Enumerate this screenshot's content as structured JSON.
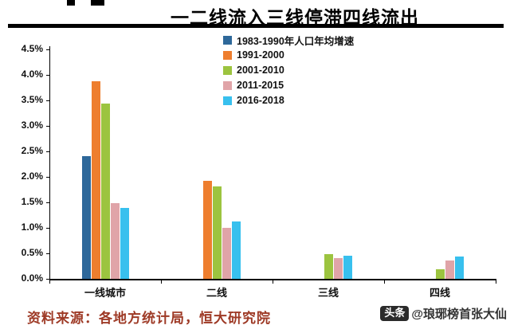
{
  "title": "一二线流入三线停滞四线流出",
  "source_note": "资料来源：各地方统计局，恒大研究院",
  "watermark": {
    "badge": "头条",
    "handle": "@琅琊榜首张大仙"
  },
  "colors": {
    "divider": "#000000",
    "source_text": "#9e3a26"
  },
  "chart_data": {
    "type": "bar",
    "title": "一二线流入三线停滞四线流出",
    "categories": [
      "一线城市",
      "二线",
      "三线",
      "四线"
    ],
    "series": [
      {
        "name": "1983-1990年人口年均增速",
        "color": "#2e689a",
        "values": [
          2.4,
          0,
          0,
          0
        ]
      },
      {
        "name": "1991-2000",
        "color": "#ee7e2e",
        "values": [
          3.87,
          1.92,
          0,
          0
        ]
      },
      {
        "name": "2001-2010",
        "color": "#9cc43f",
        "values": [
          3.43,
          1.81,
          0.48,
          0.18
        ]
      },
      {
        "name": "2011-2015",
        "color": "#e0a4a8",
        "values": [
          1.48,
          1.0,
          0.4,
          0.36
        ]
      },
      {
        "name": "2016-2018",
        "color": "#38c0ee",
        "values": [
          1.39,
          1.12,
          0.45,
          0.43
        ]
      }
    ],
    "ylim": [
      0,
      4.5
    ],
    "ytick_step": 0.5,
    "ytick_labels": [
      "0.0%",
      "0.5%",
      "1.0%",
      "1.5%",
      "2.0%",
      "2.5%",
      "3.0%",
      "3.5%",
      "4.0%",
      "4.5%"
    ],
    "xlabel": "",
    "ylabel": "",
    "grid": false,
    "legend_position": "top-center"
  }
}
